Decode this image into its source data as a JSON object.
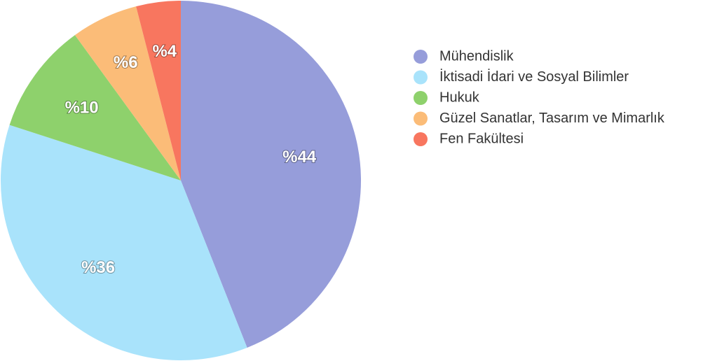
{
  "chart_data": {
    "type": "pie",
    "categories": [
      "Mühendislik",
      "İktisadi İdari ve Sosyal Bilimler",
      "Hukuk",
      "Güzel Sanatlar, Tasarım ve Mimarlık",
      "Fen Fakültesi"
    ],
    "values": [
      44,
      36,
      10,
      6,
      4
    ],
    "value_labels": [
      "%44",
      "%36",
      "%10",
      "%6",
      "%4"
    ],
    "colors": [
      "#969dda",
      "#a9e3fb",
      "#8ed16c",
      "#fbbc78",
      "#f8765f"
    ]
  }
}
